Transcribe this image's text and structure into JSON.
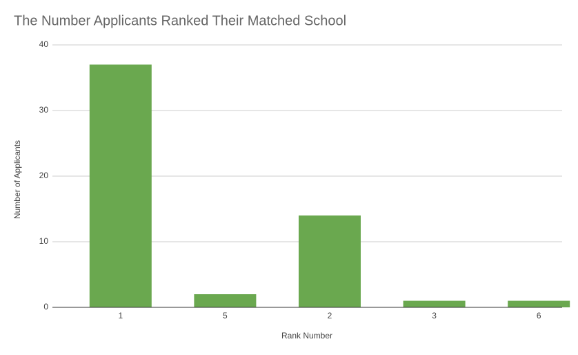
{
  "chart_data": {
    "type": "bar",
    "title": "The Number Applicants Ranked Their Matched School",
    "x_label": "Rank Number",
    "y_label": "Number of Applicants",
    "categories": [
      "1",
      "5",
      "2",
      "3",
      "6"
    ],
    "values": [
      37,
      2,
      14,
      1,
      1
    ],
    "color": "#6aa84f",
    "ylim": [
      0,
      40
    ],
    "yticks": [
      0,
      10,
      20,
      30,
      40
    ],
    "grid": true
  }
}
